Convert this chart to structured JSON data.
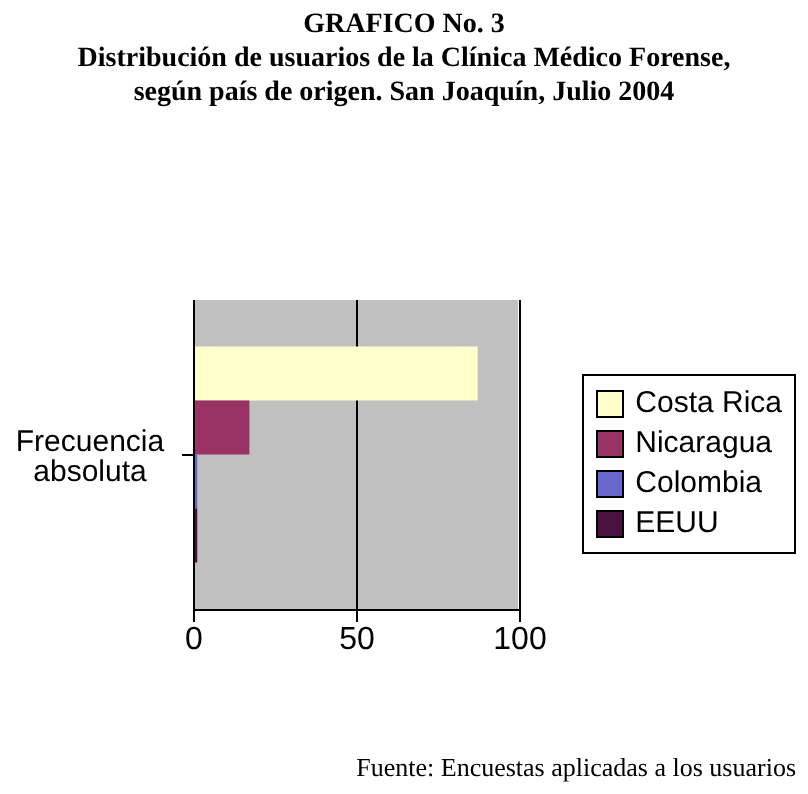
{
  "chart_data": {
    "type": "bar",
    "orientation": "horizontal",
    "title": "GRAFICO No. 3",
    "subtitle": "Distribución de usuarios de la Clínica Médico Forense, según país de origen. San Joaquín, Julio 2004",
    "categories": [
      "Frecuencia absoluta"
    ],
    "series": [
      {
        "name": "Costa Rica",
        "color": "#ffffcc",
        "values": [
          87
        ]
      },
      {
        "name": "Nicaragua",
        "color": "#993366",
        "values": [
          17
        ]
      },
      {
        "name": "Colombia",
        "color": "#6666cc",
        "values": [
          1
        ]
      },
      {
        "name": "EEUU",
        "color": "#4a1040",
        "values": [
          1
        ]
      }
    ],
    "xlim": [
      0,
      100
    ],
    "xticks": [
      0,
      50,
      100
    ],
    "grid": "x",
    "legend": "right",
    "annotations": [
      "Fuente: Encuestas aplicadas a los usuarios"
    ]
  }
}
